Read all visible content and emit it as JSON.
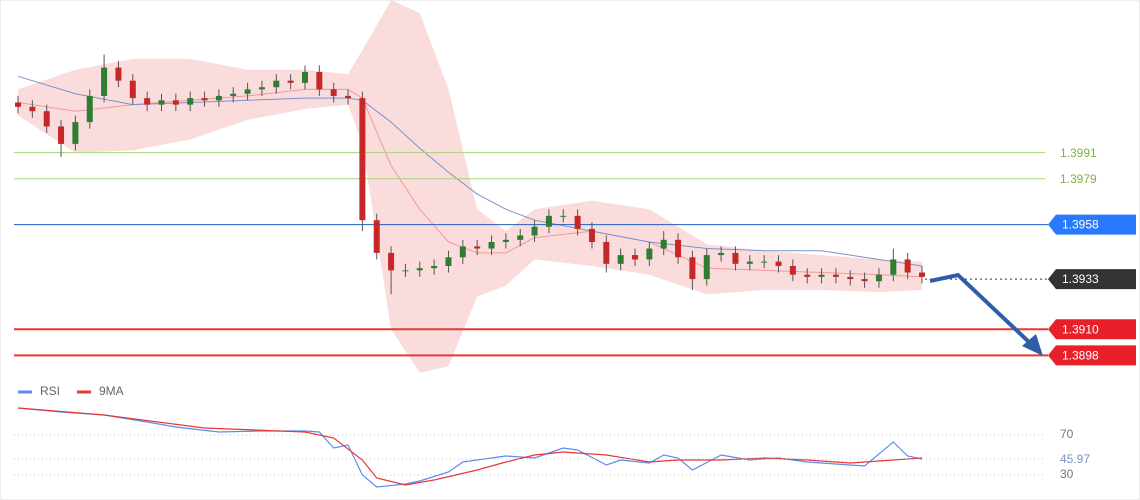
{
  "chart_data": [
    {
      "type": "candlestick",
      "open": [
        1.4014,
        1.4012,
        1.401,
        1.4003,
        1.3995,
        1.4005,
        1.4017,
        1.403,
        1.4024,
        1.4016,
        1.4013,
        1.4015,
        1.4013,
        1.4016,
        1.4015,
        1.4017,
        1.4018,
        1.402,
        1.4021,
        1.4024,
        1.4023,
        1.4028,
        1.402,
        1.4017,
        1.4016,
        1.396,
        1.3945,
        1.3937,
        1.3937,
        1.3938,
        1.3939,
        1.3943,
        1.3948,
        1.3947,
        1.395,
        1.3951,
        1.3953,
        1.3957,
        1.3962,
        1.3962,
        1.3956,
        1.395,
        1.394,
        1.3944,
        1.3942,
        1.3947,
        1.3951,
        1.3943,
        1.3933,
        1.3944,
        1.3945,
        1.394,
        1.3941,
        1.3941,
        1.3939,
        1.3935,
        1.3934,
        1.3935,
        1.3934,
        1.3933,
        1.3932,
        1.3935,
        1.3942,
        1.3936
      ],
      "high": [
        1.4017,
        1.4015,
        1.4013,
        1.4006,
        1.4008,
        1.402,
        1.4036,
        1.4033,
        1.4027,
        1.4019,
        1.4018,
        1.4018,
        1.4019,
        1.4019,
        1.402,
        1.4021,
        1.4023,
        1.4024,
        1.4027,
        1.4027,
        1.4031,
        1.4031,
        1.4023,
        1.402,
        1.4019,
        1.3963,
        1.3948,
        1.394,
        1.3941,
        1.3942,
        1.3946,
        1.3951,
        1.3951,
        1.3953,
        1.3954,
        1.3956,
        1.396,
        1.3965,
        1.3965,
        1.3965,
        1.3959,
        1.3953,
        1.3947,
        1.3947,
        1.395,
        1.3955,
        1.3954,
        1.3946,
        1.3947,
        1.3948,
        1.3948,
        1.3944,
        1.3944,
        1.3944,
        1.3942,
        1.3938,
        1.3938,
        1.3938,
        1.3937,
        1.3936,
        1.3938,
        1.3947,
        1.3945,
        1.3939
      ],
      "low": [
        1.4009,
        1.4007,
        1.4,
        1.3989,
        1.3992,
        1.4002,
        1.4014,
        1.4021,
        1.4013,
        1.401,
        1.401,
        1.401,
        1.401,
        1.4012,
        1.4012,
        1.4014,
        1.4015,
        1.4017,
        1.4018,
        1.402,
        1.402,
        1.4017,
        1.4014,
        1.4013,
        1.3955,
        1.3942,
        1.3926,
        1.3934,
        1.3934,
        1.3935,
        1.3936,
        1.394,
        1.3944,
        1.3944,
        1.3947,
        1.3948,
        1.395,
        1.3954,
        1.3959,
        1.3953,
        1.3947,
        1.3936,
        1.3937,
        1.3939,
        1.3939,
        1.3944,
        1.394,
        1.3928,
        1.393,
        1.3941,
        1.3937,
        1.3937,
        1.3938,
        1.3936,
        1.3932,
        1.3931,
        1.3931,
        1.3931,
        1.393,
        1.3929,
        1.3929,
        1.3932,
        1.3933,
        1.3931
      ],
      "close": [
        1.4012,
        1.401,
        1.4003,
        1.3995,
        1.4005,
        1.4017,
        1.403,
        1.4024,
        1.4016,
        1.4013,
        1.4015,
        1.4013,
        1.4016,
        1.4015,
        1.4017,
        1.4018,
        1.402,
        1.4021,
        1.4024,
        1.4023,
        1.4028,
        1.402,
        1.4017,
        1.4016,
        1.396,
        1.3945,
        1.3937,
        1.3937,
        1.3938,
        1.3939,
        1.3943,
        1.3948,
        1.3947,
        1.395,
        1.3951,
        1.3953,
        1.3957,
        1.3962,
        1.3962,
        1.3956,
        1.395,
        1.394,
        1.3944,
        1.3942,
        1.3947,
        1.3951,
        1.3943,
        1.3933,
        1.3944,
        1.3945,
        1.394,
        1.3941,
        1.3941,
        1.3939,
        1.3935,
        1.3934,
        1.3935,
        1.3934,
        1.3933,
        1.3932,
        1.3935,
        1.3942,
        1.3936,
        1.3934
      ],
      "up_color": "#2e7d32",
      "down_color": "#c62828",
      "bands": {
        "x": [
          0,
          4,
          8,
          12,
          16,
          20,
          23,
          24,
          26,
          28,
          30,
          32,
          34,
          36,
          40,
          44,
          48,
          52,
          56,
          60,
          63
        ],
        "upper": [
          1.402,
          1.4029,
          1.4034,
          1.4034,
          1.4029,
          1.4029,
          1.4027,
          1.4038,
          1.4061,
          1.4055,
          1.402,
          1.3965,
          1.3955,
          1.3965,
          1.3969,
          1.3965,
          1.3949,
          1.3946,
          1.3944,
          1.3942,
          1.3941
        ],
        "lower": [
          1.4008,
          1.3991,
          1.3992,
          1.3997,
          1.4006,
          1.4011,
          1.4013,
          1.3995,
          1.391,
          1.389,
          1.3893,
          1.3925,
          1.393,
          1.3942,
          1.3939,
          1.3935,
          1.3926,
          1.3928,
          1.3928,
          1.3927,
          1.3928
        ],
        "middle": [
          1.4014,
          1.401,
          1.4013,
          1.4015,
          1.4017,
          1.402,
          1.402,
          1.4016,
          1.3985,
          1.3965,
          1.395,
          1.3945,
          1.3945,
          1.3952,
          1.3955,
          1.395,
          1.3938,
          1.3937,
          1.3936,
          1.3935,
          1.3934
        ],
        "slow": [
          1.4026,
          1.4018,
          1.4013,
          1.4014,
          1.4015,
          1.4016,
          1.4016,
          1.4015,
          1.4005,
          1.3993,
          1.3982,
          1.3972,
          1.3965,
          1.396,
          1.3955,
          1.395,
          1.3947,
          1.3946,
          1.3946,
          1.3942,
          1.3939
        ],
        "fill": "#fbdcdc",
        "middle_color": "#ef9a9a",
        "slow_color": "#7b93c9"
      },
      "ylim": [
        1.3889,
        1.4061
      ],
      "yticks": [
        1.3991,
        1.3979,
        1.3958,
        1.3933,
        {
          "value": 1.391,
          "label": "1.3910"
        },
        1.3898
      ],
      "ytick_styles": [
        {
          "color": "#a5d67a",
          "text_color": "#7cb342",
          "width": 1,
          "box": false,
          "dotted": false
        },
        {
          "color": "#a5d67a",
          "text_color": "#7cb342",
          "width": 1,
          "box": false,
          "dotted": false
        },
        {
          "color": "#1e5fc8",
          "text_color": "#ffffff",
          "width": 1,
          "box": true,
          "box_color": "#2979ff",
          "dotted": false
        },
        {
          "color": "#333333",
          "text_color": "#ffffff",
          "width": 1,
          "box": true,
          "box_color": "#333333",
          "dotted": true
        },
        {
          "color": "#e53935",
          "text_color": "#ffffff",
          "width": 2,
          "box": true,
          "box_color": "#e8202a",
          "dotted": false
        },
        {
          "color": "#e53935",
          "text_color": "#ffffff",
          "width": 2,
          "box": true,
          "box_color": "#e8202a",
          "dotted": false
        }
      ]
    },
    {
      "type": "line",
      "series": [
        {
          "name": "RSI",
          "color": "#5b8def",
          "x": [
            0,
            3,
            6,
            9,
            11,
            14,
            17,
            20,
            21,
            22,
            23,
            24,
            25,
            27,
            28,
            30,
            31,
            32,
            34,
            36,
            38,
            39,
            41,
            42,
            44,
            45,
            46,
            47,
            49,
            51,
            53,
            55,
            57,
            59,
            61,
            62,
            63
          ],
          "values": [
            97,
            93,
            90,
            83,
            78,
            73,
            74,
            74,
            73,
            57,
            60,
            30,
            18,
            21,
            24,
            33,
            43,
            45,
            49,
            47,
            57,
            55,
            40,
            45,
            42,
            50,
            47,
            35,
            50,
            45,
            47,
            43,
            41,
            39,
            63,
            49,
            45.97
          ]
        },
        {
          "name": "9MA",
          "color": "#e53935",
          "x": [
            0,
            6,
            13,
            20,
            22,
            24,
            25,
            27,
            29,
            32,
            34,
            36,
            38,
            41,
            44,
            46,
            49,
            52,
            55,
            58,
            61,
            63
          ],
          "values": [
            97,
            90,
            77,
            73,
            67,
            45,
            27,
            20,
            25,
            35,
            43,
            50,
            53,
            50,
            43,
            45,
            45,
            47,
            45,
            42,
            45,
            47
          ]
        }
      ],
      "ylim": [
        5,
        100
      ],
      "yticks": [
        70,
        30
      ]
    }
  ]
}
